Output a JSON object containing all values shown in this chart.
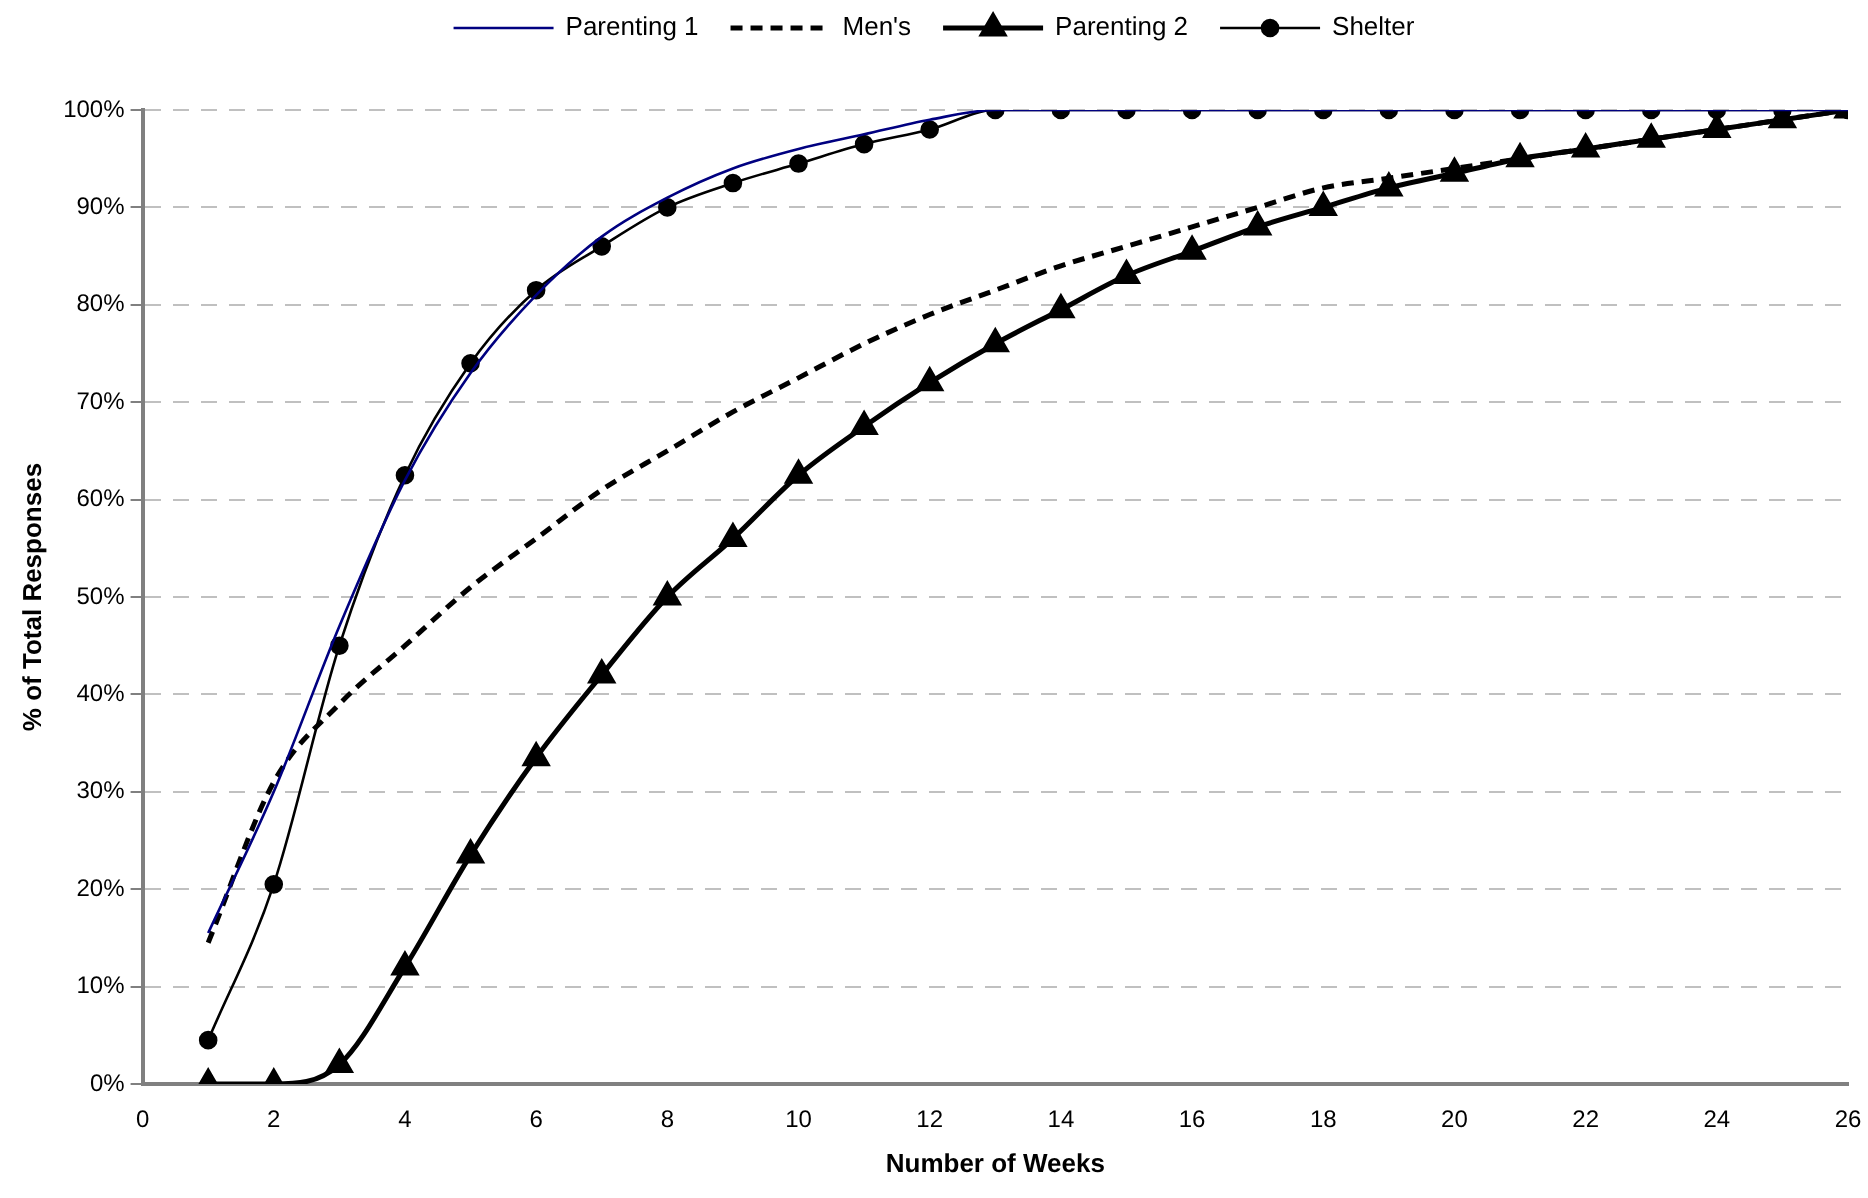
{
  "chart_data": {
    "type": "line",
    "xlabel": "Number of Weeks",
    "ylabel": "% of Total Responses",
    "x": [
      1,
      2,
      3,
      4,
      5,
      6,
      7,
      8,
      9,
      10,
      11,
      12,
      13,
      14,
      15,
      16,
      17,
      18,
      19,
      20,
      21,
      22,
      23,
      24,
      25,
      26
    ],
    "xlim": [
      0,
      26
    ],
    "xticks": [
      0,
      2,
      4,
      6,
      8,
      10,
      12,
      14,
      16,
      18,
      20,
      22,
      24,
      26
    ],
    "ylim": [
      0,
      100
    ],
    "yticks": [
      {
        "value": 0,
        "label": "0%"
      },
      {
        "value": 10,
        "label": "10%"
      },
      {
        "value": 20,
        "label": "20%"
      },
      {
        "value": 30,
        "label": "30%"
      },
      {
        "value": 40,
        "label": "40%"
      },
      {
        "value": 50,
        "label": "50%"
      },
      {
        "value": 60,
        "label": "60%"
      },
      {
        "value": 70,
        "label": "70%"
      },
      {
        "value": 80,
        "label": "80%"
      },
      {
        "value": 90,
        "label": "90%"
      },
      {
        "value": 100,
        "label": "100%"
      }
    ],
    "grid": "y",
    "legend": "top",
    "series": [
      {
        "name": "Parenting 1",
        "color": "#000080",
        "marker": "none",
        "line_style": "solid",
        "values": [
          15.5,
          30,
          47,
          62,
          73,
          81,
          87,
          91,
          94,
          96,
          97.5,
          99,
          100,
          100,
          100,
          100,
          100,
          100,
          100,
          100,
          100,
          100,
          100,
          100,
          100,
          100
        ]
      },
      {
        "name": "Men's",
        "color": "#000000",
        "marker": "none",
        "line_style": "dashed",
        "values": [
          14.5,
          31,
          39,
          45,
          51,
          56,
          61,
          65,
          69,
          72.5,
          76,
          79,
          81.5,
          84,
          86,
          88,
          90,
          92,
          93,
          94,
          95,
          96,
          97,
          98,
          99,
          100
        ]
      },
      {
        "name": "Parenting 2",
        "color": "#000000",
        "marker": "triangle",
        "line_style": "solid",
        "values": [
          0,
          0,
          2,
          12,
          23.5,
          33.5,
          42,
          50,
          56,
          62.5,
          67.5,
          72,
          76,
          79.5,
          83,
          85.5,
          88,
          90,
          92,
          93.5,
          95,
          96,
          97,
          98,
          99,
          100
        ]
      },
      {
        "name": "Shelter",
        "color": "#000000",
        "marker": "circle",
        "line_style": "solid",
        "values": [
          4.5,
          20.5,
          45,
          62.5,
          74,
          81.5,
          86,
          90,
          92.5,
          94.5,
          96.5,
          98,
          100,
          100,
          100,
          100,
          100,
          100,
          100,
          100,
          100,
          100,
          100,
          100,
          100,
          100
        ]
      }
    ]
  }
}
